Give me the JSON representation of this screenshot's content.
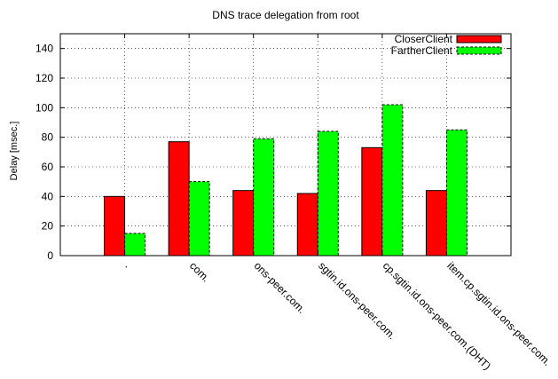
{
  "chart_data": {
    "type": "bar",
    "title": "DNS trace delegation from root",
    "xlabel": "",
    "ylabel": "Delay [msec.]",
    "ylim": [
      0,
      150
    ],
    "yticks": [
      0,
      20,
      40,
      60,
      80,
      100,
      120,
      140
    ],
    "grid": true,
    "legend_position": "top-right",
    "categories": [
      ".",
      "com.",
      "ons-peer.com.",
      "sgtin.id.ons-peer.com.",
      "cp.sgtin.id.ons-peer.com.(DHT)",
      "item.cp.sgtin.id.ons-peer.com."
    ],
    "series": [
      {
        "name": "CloserClient",
        "values": [
          40,
          77,
          44,
          42,
          73,
          44
        ],
        "color": "#ff0000",
        "pattern": "solid"
      },
      {
        "name": "FartherClient",
        "values": [
          15,
          50,
          79,
          84,
          102,
          85
        ],
        "color": "#00ff00",
        "pattern": "dashed"
      }
    ]
  }
}
